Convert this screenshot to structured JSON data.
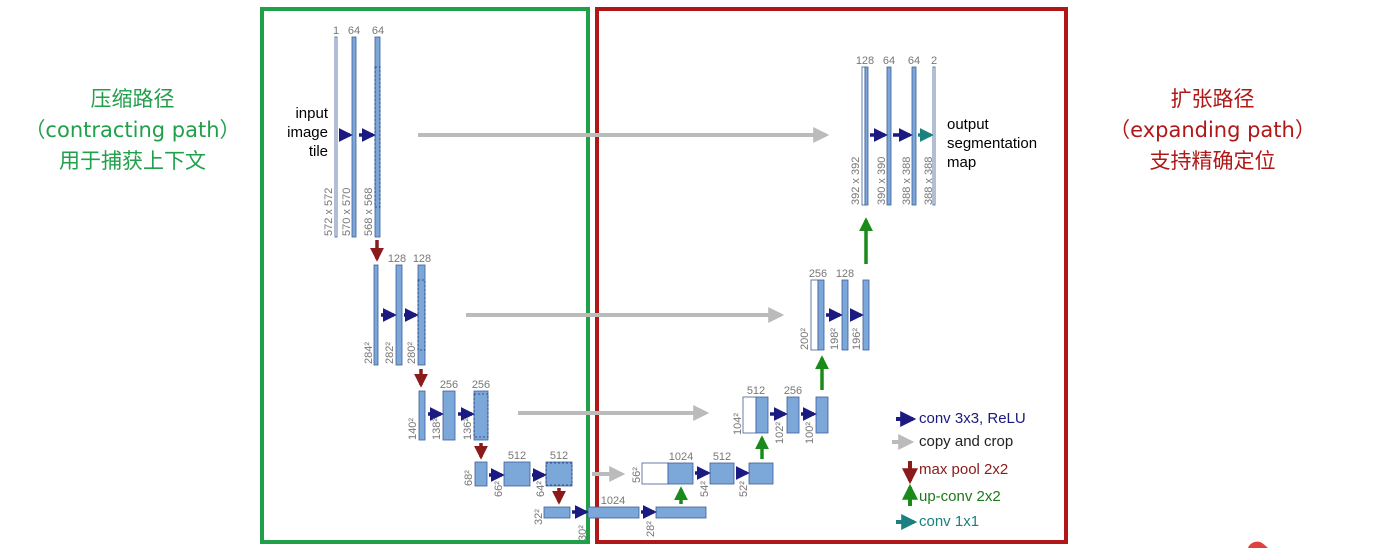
{
  "zones": {
    "contracting": {
      "line1": "压缩路径",
      "line2": "（contracting path）",
      "line3": "用于捕获上下文",
      "color": "#21a04b"
    },
    "expanding": {
      "line1": "扩张路径",
      "line2": "（expanding path）",
      "line3": "支持精确定位",
      "color": "#b01818"
    }
  },
  "input_tile": {
    "line1": "input",
    "line2": "image",
    "line3": "tile"
  },
  "output_map": {
    "line1": "output",
    "line2": "segmentation",
    "line3": "map"
  },
  "channel_labels": {
    "l1": [
      "1",
      "64",
      "64"
    ],
    "l2": [
      "128",
      "128"
    ],
    "l3": [
      "256",
      "256"
    ],
    "l4": [
      "512",
      "512"
    ],
    "bottom": [
      "1024"
    ],
    "u4": [
      "1024",
      "512"
    ],
    "u3": [
      "512",
      "256"
    ],
    "u2": [
      "256",
      "128"
    ],
    "u1": [
      "128",
      "64",
      "64",
      "2"
    ]
  },
  "size_labels": {
    "l1": [
      "572 x 572",
      "570 x 570",
      "568 x 568"
    ],
    "l2": [
      "284²",
      "282²",
      "280²"
    ],
    "l3": [
      "140²",
      "138²",
      "136²"
    ],
    "l4": [
      "68²",
      "66²",
      "64²"
    ],
    "bottom": [
      "32²",
      "30²",
      "28²"
    ],
    "u4": [
      "56²",
      "54²",
      "52²"
    ],
    "u3": [
      "104²",
      "102²",
      "100²"
    ],
    "u2": [
      "200²",
      "198²",
      "196²"
    ],
    "u1": [
      "392 x 392",
      "390 x 390",
      "388 x 388",
      "388 x 388"
    ]
  },
  "legend": [
    {
      "key": "conv",
      "label": "conv 3x3, ReLU",
      "color": "#1a1a80"
    },
    {
      "key": "copy",
      "label": "copy and crop",
      "color": "#222222"
    },
    {
      "key": "pool",
      "label": "max pool 2x2",
      "color": "#8b1a1a"
    },
    {
      "key": "upconv",
      "label": "up-conv 2x2",
      "color": "#1a7a1a"
    },
    {
      "key": "conv1x1",
      "label": "conv 1x1",
      "color": "#1a8080"
    }
  ],
  "colors": {
    "feature_map": "#7ba7d9",
    "feature_map_border": "#3d5f99",
    "conv_arrow": "#1a1a80",
    "copy_arrow": "#bbbbbb",
    "pool_arrow": "#8b1a1a",
    "upconv_arrow": "#1a8a1a",
    "conv1x1_arrow": "#1a8080",
    "green_frame": "#21a04b",
    "red_frame": "#b01818"
  }
}
